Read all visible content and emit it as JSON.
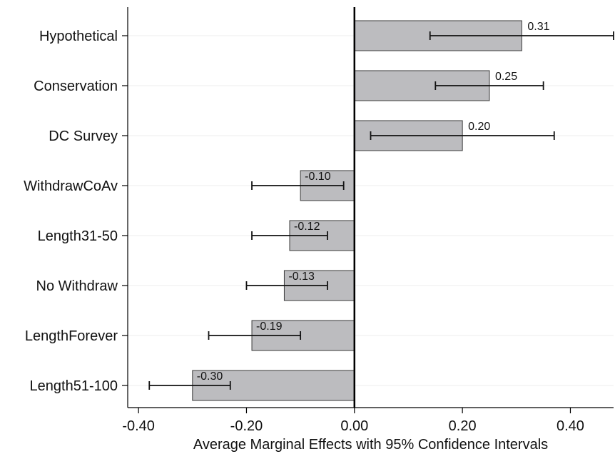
{
  "chart_data": {
    "type": "bar",
    "orientation": "horizontal",
    "categories": [
      "Hypothetical",
      "Conservation",
      "DC Survey",
      "WithdrawCoAv",
      "Length31-50",
      "No Withdraw",
      "LengthForever",
      "Length51-100"
    ],
    "values": [
      0.31,
      0.25,
      0.2,
      -0.1,
      -0.12,
      -0.13,
      -0.19,
      -0.3
    ],
    "value_labels": [
      "0.31",
      "0.25",
      "0.20",
      "-0.10",
      "-0.12",
      "-0.13",
      "-0.19",
      "-0.30"
    ],
    "ci_low": [
      0.14,
      0.15,
      0.03,
      -0.19,
      -0.19,
      -0.2,
      -0.27,
      -0.38
    ],
    "ci_high": [
      0.48,
      0.35,
      0.37,
      -0.02,
      -0.05,
      -0.05,
      -0.1,
      -0.23
    ],
    "xlabel": "Average Marginal Effects with 95% Confidence Intervals",
    "ylabel": "",
    "xlim": [
      -0.42,
      0.48
    ],
    "xticks": [
      -0.4,
      -0.2,
      0.0,
      0.2,
      0.4
    ],
    "xtick_labels": [
      "-0.40",
      "-0.20",
      "0.00",
      "0.20",
      "0.40"
    ],
    "grid": true,
    "legend": "none",
    "colors": {
      "bar_fill": "#bcbcbf",
      "bar_stroke": "#3a3a3a",
      "grid": "#eeeeee",
      "zero_line": "#000000",
      "text": "#111111"
    }
  }
}
